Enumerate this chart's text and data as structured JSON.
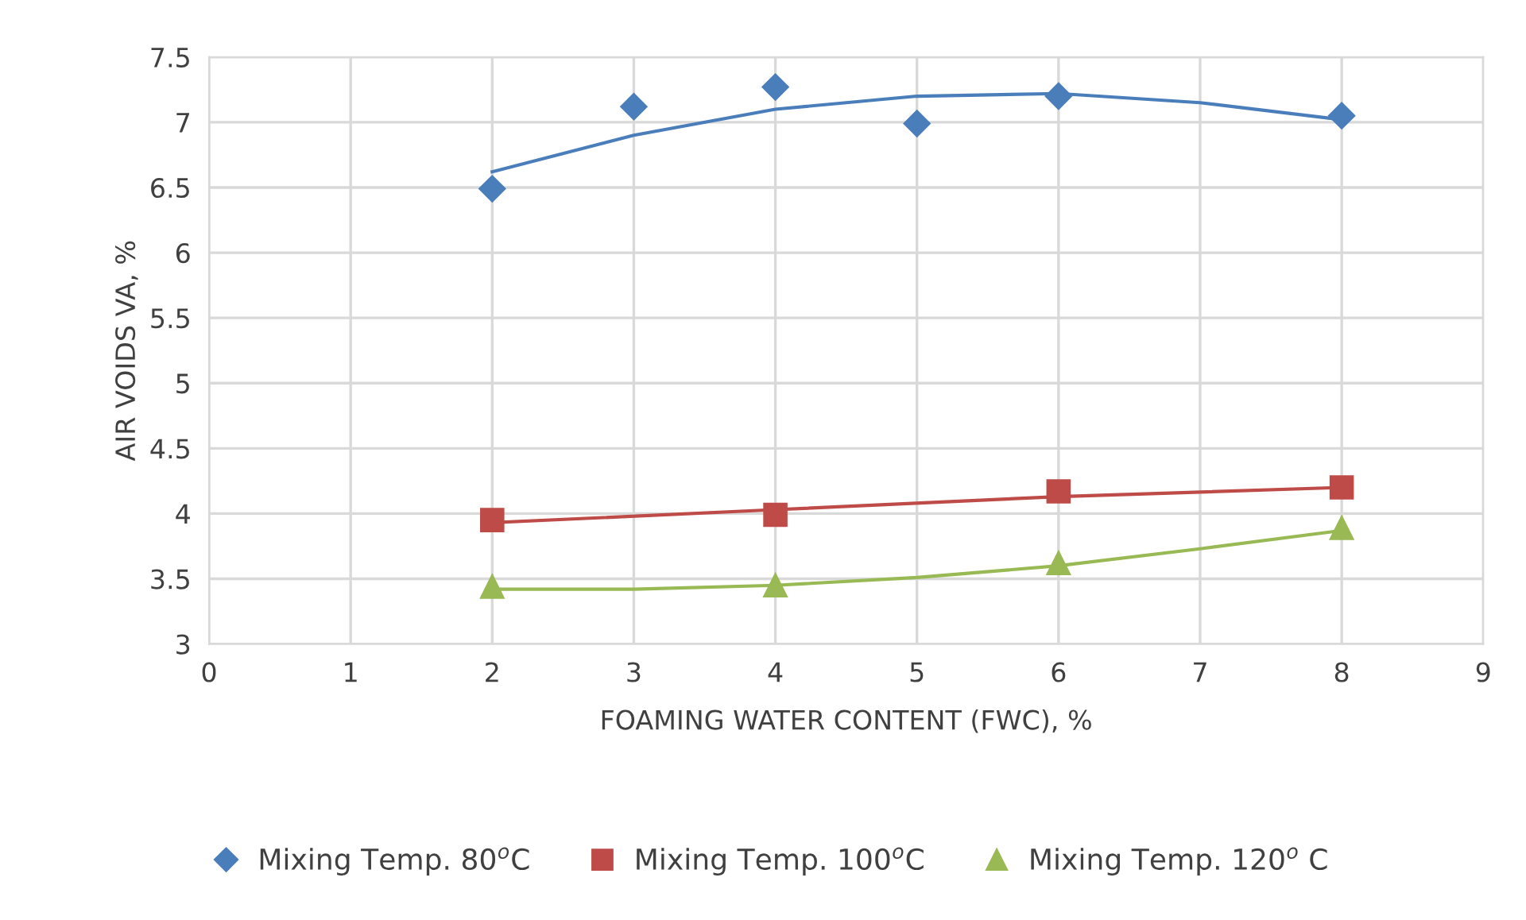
{
  "chart_data": {
    "type": "scatter",
    "xlabel": "FOAMING WATER CONTENT (FWC), %",
    "ylabel": "AIR VOIDS VA, %",
    "xlim": [
      0,
      9
    ],
    "xticks": [
      0,
      1,
      2,
      3,
      4,
      5,
      6,
      7,
      8,
      9
    ],
    "ylim": [
      3,
      7.5
    ],
    "yticks": [
      3,
      3.5,
      4,
      4.5,
      5,
      5.5,
      6,
      6.5,
      7,
      7.5
    ],
    "grid": true,
    "legend": "bottom",
    "series": [
      {
        "name": "Mixing Temp. 80$^{o}$C",
        "color": "#4a7ebb",
        "marker": "diamond",
        "x": [
          2,
          3,
          4,
          5,
          6,
          8
        ],
        "values": [
          6.49,
          7.12,
          7.27,
          6.99,
          7.2,
          7.05
        ]
      },
      {
        "name": "Mixing Temp. 100$^{o}$C",
        "color": "#be4b48",
        "marker": "square",
        "x": [
          2,
          4,
          6,
          8
        ],
        "values": [
          3.95,
          3.99,
          4.17,
          4.2
        ]
      },
      {
        "name": "Mixing Temp. 120$^{o}$ C",
        "color": "#98b954",
        "marker": "triangle",
        "x": [
          2,
          4,
          6,
          8
        ],
        "values": [
          3.44,
          3.45,
          3.62,
          3.89
        ]
      },
      {
        "type": "line",
        "color": "#4a7ebb",
        "marker": "none",
        "x": [
          2,
          3,
          4,
          5,
          6,
          7,
          8
        ],
        "values": [
          6.62,
          6.9,
          7.1,
          7.2,
          7.22,
          7.15,
          7.02
        ]
      },
      {
        "type": "line",
        "color": "#be4b48",
        "marker": "none",
        "x": [
          2,
          4,
          6,
          8
        ],
        "values": [
          3.93,
          4.03,
          4.13,
          4.2
        ]
      },
      {
        "type": "line",
        "color": "#98b954",
        "marker": "none",
        "x": [
          2,
          3,
          4,
          5,
          6,
          7,
          8
        ],
        "values": [
          3.42,
          3.42,
          3.45,
          3.51,
          3.6,
          3.73,
          3.87
        ]
      }
    ]
  }
}
